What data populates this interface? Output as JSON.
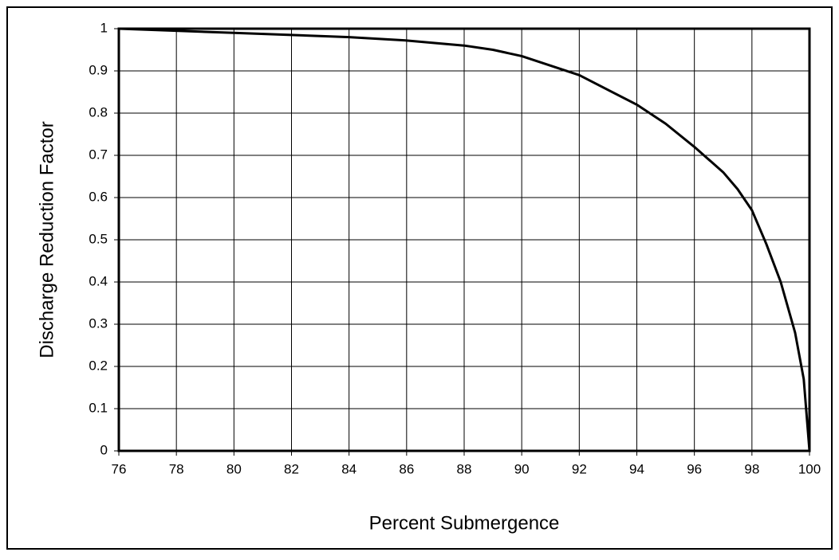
{
  "chart_data": {
    "type": "line",
    "xlabel": "Percent Submergence",
    "ylabel": "Discharge Reduction Factor",
    "x": [
      76,
      80,
      84,
      86,
      88,
      89,
      90,
      92,
      94,
      95,
      96,
      97,
      97.5,
      98,
      98.5,
      99,
      99.5,
      99.8,
      100
    ],
    "series": [
      {
        "color": "#000000",
        "values": [
          1,
          0.99,
          0.98,
          0.972,
          0.96,
          0.95,
          0.935,
          0.89,
          0.82,
          0.775,
          0.72,
          0.66,
          0.62,
          0.57,
          0.49,
          0.4,
          0.28,
          0.17,
          0
        ]
      }
    ],
    "xlim": [
      76,
      100
    ],
    "xticks": [
      76,
      78,
      80,
      82,
      84,
      86,
      88,
      90,
      92,
      94,
      96,
      98,
      100
    ],
    "ylim": [
      0,
      1
    ],
    "yticks": [
      0,
      0.1,
      0.2,
      0.3,
      0.4,
      0.5,
      0.6,
      0.7,
      0.8,
      0.9,
      1
    ],
    "grid": true
  }
}
